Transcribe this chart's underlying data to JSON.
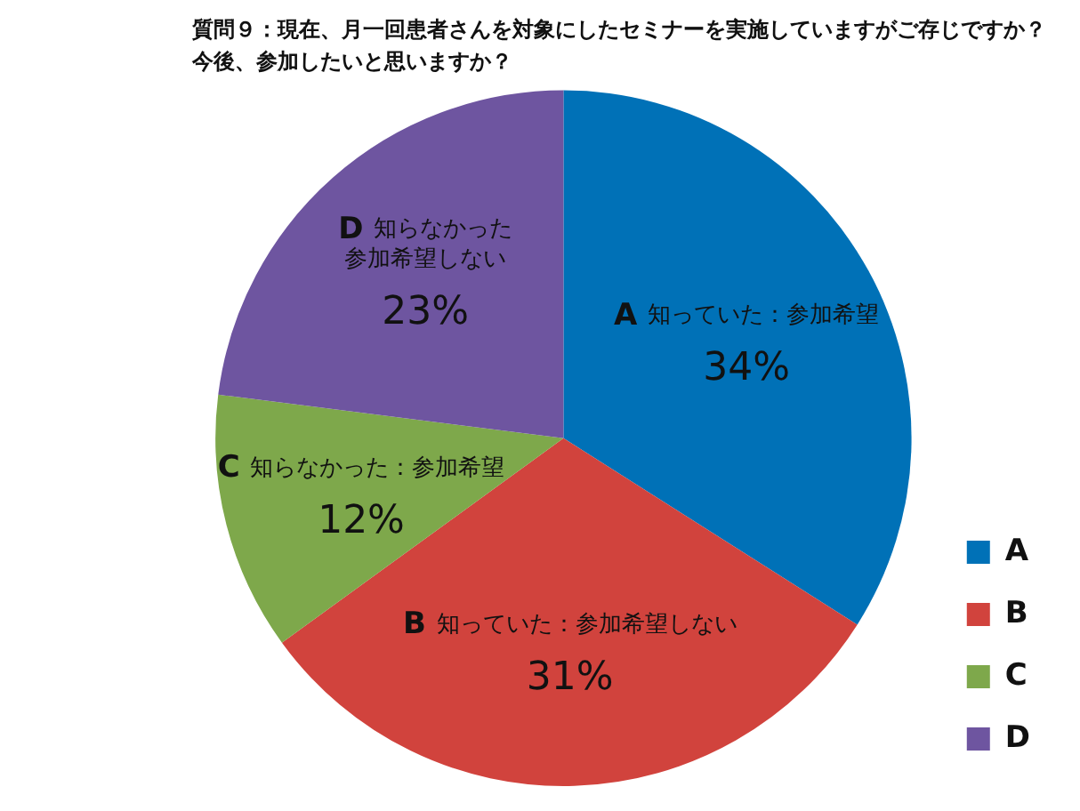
{
  "chart_data": {
    "type": "pie",
    "title": "質問９：現在、月一回患者さんを対象にしたセミナーを実施していますがご存じですか？",
    "subtitle": "今後、参加したいと思いますか？",
    "categories": [
      "A",
      "B",
      "C",
      "D"
    ],
    "values": [
      34,
      31,
      12,
      23
    ],
    "value_labels": [
      "34%",
      "31%",
      "12%",
      "23%"
    ],
    "colors": [
      "#0071b7",
      "#d1433d",
      "#7ea84b",
      "#6e55a0"
    ],
    "annotations": [
      {
        "text": "知っていた：参加希望",
        "x": "A"
      },
      {
        "text": "知っていた：参加希望しない",
        "x": "B"
      },
      {
        "text": "知らなかった：参加希望",
        "x": "C"
      },
      {
        "text": "知らなかった",
        "x": "D"
      },
      {
        "text": "参加希望しない",
        "x": "D"
      }
    ],
    "legend": "bottom right"
  }
}
